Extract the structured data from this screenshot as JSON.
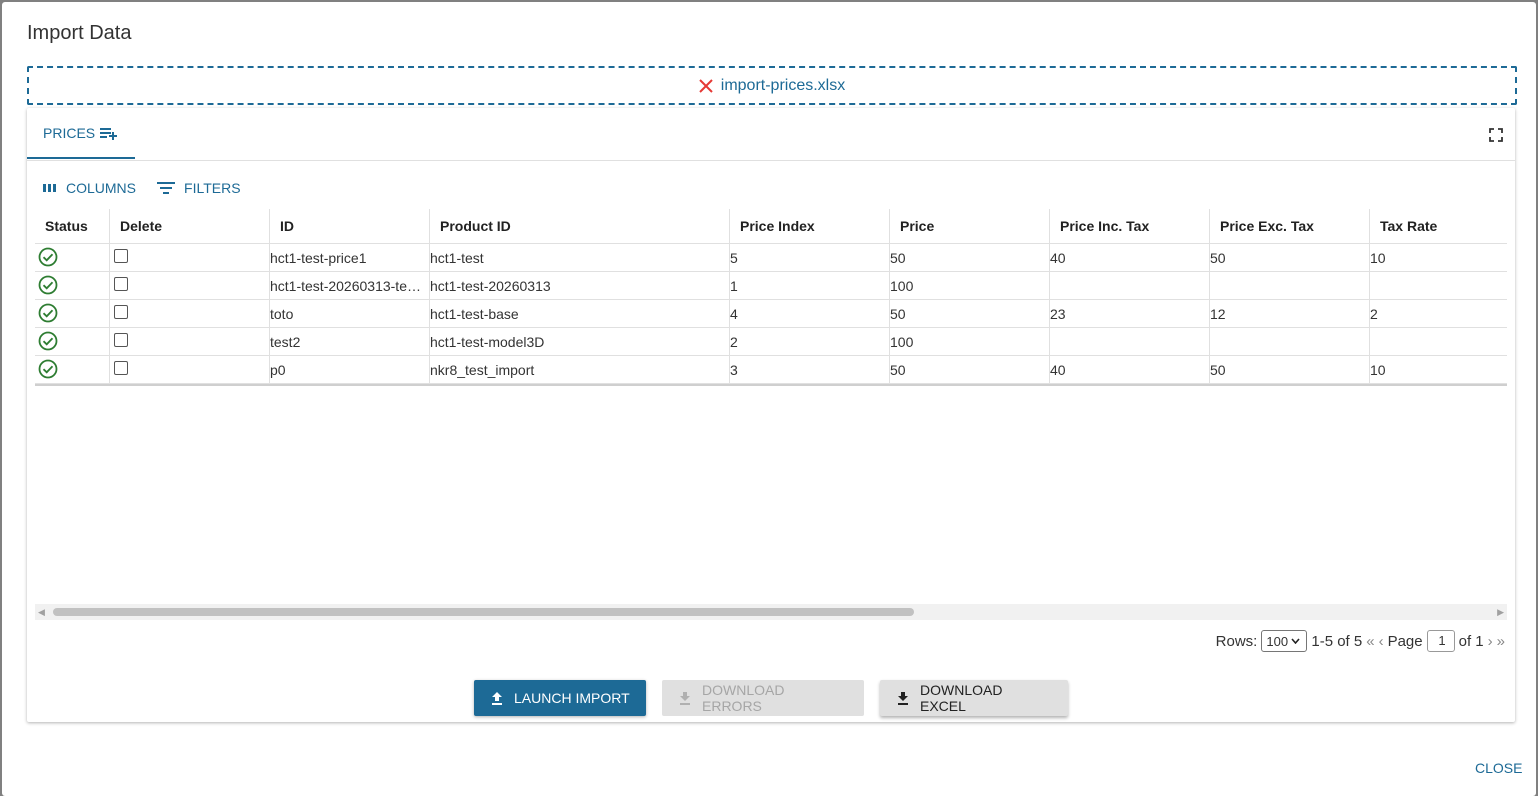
{
  "dialog": {
    "title": "Import Data",
    "close_label": "CLOSE"
  },
  "dropzone": {
    "file_name": "import-prices.xlsx",
    "remove_icon": "close-icon",
    "remove_color": "#e53935"
  },
  "tabs": [
    {
      "label": "PRICES",
      "icon": "playlist-add-icon",
      "selected": true
    }
  ],
  "toolbar": {
    "columns_label": "COLUMNS",
    "filters_label": "FILTERS"
  },
  "grid": {
    "columns": [
      "Status",
      "Delete",
      "ID",
      "Product ID",
      "Price Index",
      "Price",
      "Price Inc. Tax",
      "Price Exc. Tax",
      "Tax Rate"
    ],
    "rows": [
      {
        "status": "success",
        "delete": false,
        "id": "hct1-test-price1",
        "product_id": "hct1-test",
        "price_index": "5",
        "price": "50",
        "price_inc_tax": "40",
        "price_exc_tax": "50",
        "tax_rate": "10"
      },
      {
        "status": "success",
        "delete": false,
        "id": "hct1-test-20260313-te…",
        "product_id": "hct1-test-20260313",
        "price_index": "1",
        "price": "100",
        "price_inc_tax": "",
        "price_exc_tax": "",
        "tax_rate": ""
      },
      {
        "status": "success",
        "delete": false,
        "id": "toto",
        "product_id": "hct1-test-base",
        "price_index": "4",
        "price": "50",
        "price_inc_tax": "23",
        "price_exc_tax": "12",
        "tax_rate": "2"
      },
      {
        "status": "success",
        "delete": false,
        "id": "test2",
        "product_id": "hct1-test-model3D",
        "price_index": "2",
        "price": "100",
        "price_inc_tax": "",
        "price_exc_tax": "",
        "tax_rate": ""
      },
      {
        "status": "success",
        "delete": false,
        "id": "p0",
        "product_id": "nkr8_test_import",
        "price_index": "3",
        "price": "50",
        "price_inc_tax": "40",
        "price_exc_tax": "50",
        "tax_rate": "10"
      }
    ],
    "status_color": "#2e7d32"
  },
  "pagination": {
    "rows_label": "Rows:",
    "rows_per_page": "100",
    "range_text": "1-5 of 5",
    "page_label": "Page",
    "page_value": "1",
    "of_text": "of 1"
  },
  "actions": {
    "launch_import": "LAUNCH IMPORT",
    "download_errors": "DOWNLOAD ERRORS",
    "download_excel": "DOWNLOAD EXCEL"
  },
  "colors": {
    "accent": "#1d6a96"
  }
}
